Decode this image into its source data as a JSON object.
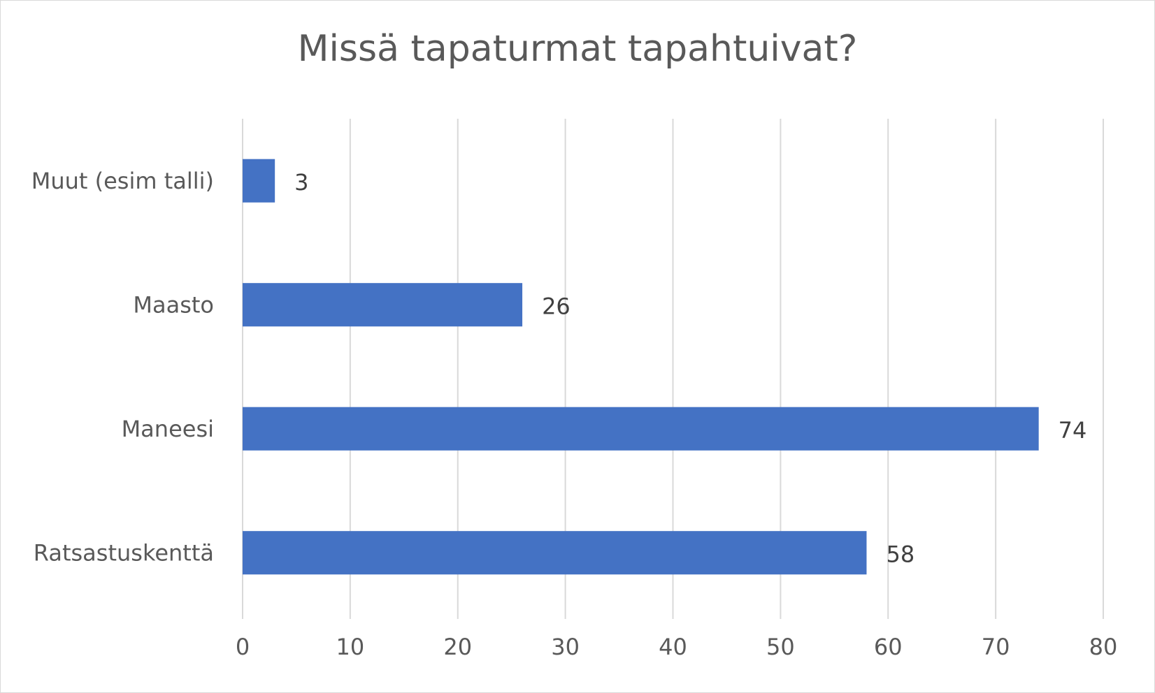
{
  "chart_data": {
    "type": "bar",
    "orientation": "horizontal",
    "title": "Missä tapaturmat tapahtuivat?",
    "categories": [
      "Muut (esim talli)",
      "Maasto",
      "Maneesi",
      "Ratsastuskenttä"
    ],
    "values": [
      3,
      26,
      74,
      58
    ],
    "xlim": [
      0,
      80
    ],
    "xticks": [
      0,
      10,
      20,
      30,
      40,
      50,
      60,
      70,
      80
    ],
    "grid": "vertical",
    "legend": "none",
    "bar_color": "#4472c4",
    "grid_color": "#d9d9d9"
  }
}
